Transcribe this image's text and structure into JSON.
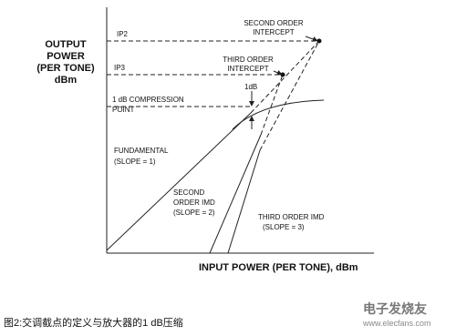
{
  "y_axis_label": [
    "OUTPUT",
    "POWER",
    "(PER TONE)",
    "dBm"
  ],
  "x_axis_label": "INPUT POWER (PER TONE), dBm",
  "labels": {
    "ip2": "IP2",
    "ip3": "IP3",
    "second_order_intercept": [
      "SECOND ORDER",
      "INTERCEPT"
    ],
    "third_order_intercept": [
      "THIRD ORDER",
      "INTERCEPT"
    ],
    "one_db": "1dB",
    "compression_point": [
      "1 dB COMPRESSION",
      "POINT"
    ],
    "fundamental": [
      "FUNDAMENTAL",
      "(SLOPE = 1)"
    ],
    "second_order_imd": [
      "SECOND",
      "ORDER IMD",
      "(SLOPE = 2)"
    ],
    "third_order_imd": [
      "THIRD ORDER IMD",
      "(SLOPE = 3)"
    ]
  },
  "caption": "图2:交调截点的定义与放大器的1 dB压缩",
  "watermark": {
    "brand": "电子发烧友",
    "url": "www.elecfans.com"
  }
}
